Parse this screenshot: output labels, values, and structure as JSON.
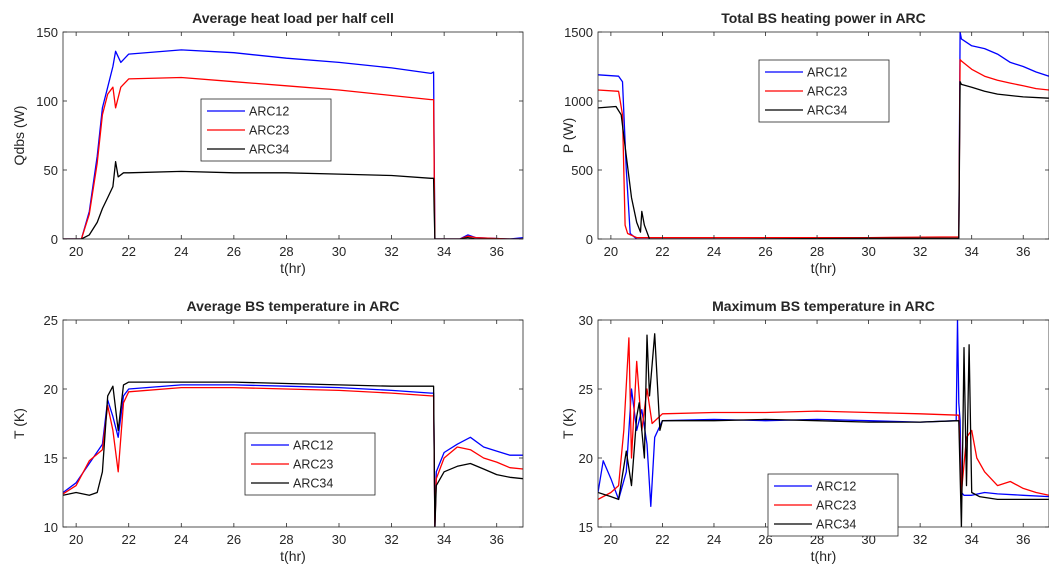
{
  "chart_data": [
    {
      "type": "line",
      "title": "Average heat load per half cell",
      "xlabel": "t(hr)",
      "ylabel": "Qdbs (W)",
      "xlim": [
        19.5,
        37
      ],
      "ylim": [
        0,
        150
      ],
      "xticks": [
        "20",
        "22",
        "24",
        "26",
        "28",
        "30",
        "32",
        "34",
        "36"
      ],
      "yticks": [
        "0",
        "50",
        "100",
        "150"
      ],
      "legend": "upper-left-inside",
      "series": [
        {
          "name": "ARC12",
          "color": "#0000ff",
          "x": [
            19.5,
            20.2,
            20.5,
            20.8,
            21.0,
            21.2,
            21.4,
            21.5,
            21.7,
            22.0,
            24.0,
            26.0,
            28.0,
            30.0,
            32.0,
            33.5,
            33.6,
            33.62,
            33.65,
            34.0,
            34.6,
            34.9,
            35.2,
            36.5,
            37.0
          ],
          "y": [
            0,
            0,
            20,
            60,
            95,
            110,
            125,
            136,
            128,
            134,
            137,
            135,
            131,
            128,
            124,
            120,
            121,
            60,
            0,
            0,
            0,
            3,
            1,
            0,
            1
          ]
        },
        {
          "name": "ARC23",
          "color": "#ff0000",
          "x": [
            19.5,
            20.2,
            20.5,
            20.8,
            21.0,
            21.2,
            21.4,
            21.5,
            21.7,
            22.0,
            24.0,
            26.0,
            28.0,
            30.0,
            32.0,
            33.5,
            33.6,
            33.62,
            33.65,
            34.0,
            34.6,
            34.9,
            35.2,
            36.5,
            37.0
          ],
          "y": [
            0,
            0,
            18,
            55,
            90,
            105,
            110,
            95,
            110,
            116,
            117,
            114,
            111,
            108,
            104,
            101,
            101,
            50,
            0,
            0,
            0,
            2,
            1,
            0,
            0
          ]
        },
        {
          "name": "ARC34",
          "color": "#000000",
          "x": [
            19.5,
            20.2,
            20.5,
            20.8,
            21.0,
            21.2,
            21.4,
            21.5,
            21.6,
            21.8,
            22.0,
            24.0,
            26.0,
            28.0,
            30.0,
            32.0,
            33.5,
            33.6,
            33.62,
            33.65,
            34.0,
            34.6,
            34.9,
            35.2,
            36.5,
            37.0
          ],
          "y": [
            0,
            0,
            3,
            12,
            22,
            30,
            38,
            56,
            45,
            48,
            48,
            49,
            48,
            48,
            47,
            46,
            44,
            44,
            20,
            0,
            0,
            0,
            1,
            0,
            0,
            0
          ]
        }
      ]
    },
    {
      "type": "line",
      "title": "Total BS heating power in ARC",
      "xlabel": "t(hr)",
      "ylabel": "P (W)",
      "xlim": [
        19.5,
        37
      ],
      "ylim": [
        0,
        1500
      ],
      "xticks": [
        "20",
        "22",
        "24",
        "26",
        "28",
        "30",
        "32",
        "34",
        "36"
      ],
      "yticks": [
        "0",
        "500",
        "1000",
        "1500"
      ],
      "legend": "top-center-inside",
      "series": [
        {
          "name": "ARC12",
          "color": "#0000ff",
          "x": [
            19.5,
            20.3,
            20.45,
            20.6,
            20.75,
            21.0,
            25.0,
            30.0,
            33.5,
            33.55,
            33.6,
            34.0,
            34.5,
            35.0,
            35.5,
            36.0,
            36.5,
            37.0
          ],
          "y": [
            1190,
            1180,
            1140,
            500,
            40,
            0,
            0,
            0,
            0,
            1500,
            1450,
            1400,
            1380,
            1340,
            1280,
            1250,
            1210,
            1180
          ]
        },
        {
          "name": "ARC23",
          "color": "#ff0000",
          "x": [
            19.5,
            20.3,
            20.45,
            20.55,
            20.65,
            21.0,
            25.0,
            30.0,
            33.5,
            33.55,
            33.6,
            34.0,
            34.5,
            35.0,
            35.5,
            36.0,
            36.5,
            37.0
          ],
          "y": [
            1080,
            1070,
            900,
            100,
            40,
            10,
            10,
            10,
            15,
            1300,
            1290,
            1230,
            1180,
            1150,
            1130,
            1110,
            1090,
            1080
          ]
        },
        {
          "name": "ARC34",
          "color": "#000000",
          "x": [
            19.5,
            20.2,
            20.4,
            20.6,
            20.8,
            21.0,
            21.15,
            21.2,
            21.3,
            21.5,
            25.0,
            30.0,
            33.5,
            33.55,
            33.6,
            34.0,
            34.5,
            35.0,
            36.0,
            37.0
          ],
          "y": [
            950,
            960,
            900,
            600,
            300,
            120,
            50,
            200,
            100,
            0,
            0,
            5,
            5,
            1140,
            1120,
            1100,
            1070,
            1050,
            1030,
            1020
          ]
        }
      ]
    },
    {
      "type": "line",
      "title": "Average BS temperature in ARC",
      "xlabel": "t(hr)",
      "ylabel": "T (K)",
      "xlim": [
        19.5,
        37
      ],
      "ylim": [
        10,
        25
      ],
      "xticks": [
        "20",
        "22",
        "24",
        "26",
        "28",
        "30",
        "32",
        "34",
        "36"
      ],
      "yticks": [
        "10",
        "15",
        "20",
        "25"
      ],
      "legend": "lower-center-inside",
      "series": [
        {
          "name": "ARC12",
          "color": "#0000ff",
          "x": [
            19.5,
            20.0,
            20.5,
            21.0,
            21.2,
            21.4,
            21.6,
            21.8,
            22.0,
            24.0,
            26.0,
            28.0,
            30.0,
            32.0,
            33.5,
            33.6,
            33.65,
            33.7,
            34.0,
            34.5,
            35.0,
            35.5,
            36.0,
            36.5,
            37.0
          ],
          "y": [
            12.5,
            13.2,
            14.6,
            16.0,
            19.2,
            18.0,
            16.5,
            19.5,
            20.0,
            20.3,
            20.3,
            20.2,
            20.1,
            19.9,
            19.7,
            19.7,
            10.0,
            14.0,
            15.4,
            16.0,
            16.5,
            15.8,
            15.5,
            15.2,
            15.2
          ]
        },
        {
          "name": "ARC23",
          "color": "#ff0000",
          "x": [
            19.5,
            20.0,
            20.5,
            21.0,
            21.2,
            21.4,
            21.6,
            21.8,
            22.0,
            24.0,
            26.0,
            28.0,
            30.0,
            32.0,
            33.5,
            33.6,
            33.65,
            33.7,
            34.0,
            34.5,
            35.0,
            35.5,
            36.0,
            36.5,
            37.0
          ],
          "y": [
            12.4,
            13.0,
            14.8,
            15.6,
            18.8,
            17.0,
            14.0,
            19.0,
            19.8,
            20.1,
            20.1,
            20.0,
            19.9,
            19.7,
            19.5,
            19.5,
            10.0,
            13.5,
            15.0,
            15.8,
            15.6,
            15.0,
            14.7,
            14.3,
            14.2
          ]
        },
        {
          "name": "ARC34",
          "color": "#000000",
          "x": [
            19.5,
            20.0,
            20.5,
            20.8,
            21.0,
            21.2,
            21.4,
            21.6,
            21.8,
            22.0,
            24.0,
            26.0,
            28.0,
            30.0,
            32.0,
            33.5,
            33.6,
            33.65,
            33.7,
            34.0,
            34.5,
            35.0,
            35.5,
            36.0,
            36.5,
            37.0
          ],
          "y": [
            12.3,
            12.5,
            12.3,
            12.5,
            14.0,
            19.5,
            20.2,
            17.0,
            20.3,
            20.5,
            20.5,
            20.5,
            20.4,
            20.3,
            20.2,
            20.2,
            20.2,
            10.0,
            13.0,
            14.0,
            14.4,
            14.6,
            14.2,
            13.8,
            13.6,
            13.5
          ]
        }
      ]
    },
    {
      "type": "line",
      "title": "Maximum BS temperature in ARC",
      "xlabel": "t(hr)",
      "ylabel": "T (K)",
      "xlim": [
        19.5,
        37
      ],
      "ylim": [
        15,
        30
      ],
      "xticks": [
        "20",
        "22",
        "24",
        "26",
        "28",
        "30",
        "32",
        "34",
        "36"
      ],
      "yticks": [
        "15",
        "20",
        "25",
        "30"
      ],
      "legend": "lower-center-inside",
      "series": [
        {
          "name": "ARC12",
          "color": "#0000ff",
          "x": [
            19.5,
            19.7,
            20.0,
            20.3,
            20.6,
            20.8,
            21.0,
            21.2,
            21.4,
            21.55,
            21.7,
            22.0,
            24.0,
            26.0,
            28.0,
            30.0,
            32.0,
            33.4,
            33.45,
            33.5,
            33.55,
            33.6,
            33.7,
            34.0,
            34.5,
            35.0,
            36.0,
            37.0
          ],
          "y": [
            17.5,
            19.8,
            18.5,
            17.0,
            19.0,
            25.0,
            22.0,
            23.5,
            21.0,
            16.5,
            21.5,
            22.7,
            22.8,
            22.7,
            22.8,
            22.7,
            22.6,
            22.7,
            30.0,
            24.0,
            22.7,
            17.5,
            17.3,
            17.3,
            17.5,
            17.4,
            17.3,
            17.2
          ]
        },
        {
          "name": "ARC23",
          "color": "#ff0000",
          "x": [
            19.5,
            20.0,
            20.3,
            20.5,
            20.7,
            20.8,
            21.0,
            21.2,
            21.4,
            21.6,
            22.0,
            24.0,
            26.0,
            28.0,
            30.0,
            32.0,
            33.5,
            33.6,
            33.8,
            34.0,
            34.2,
            34.5,
            35.0,
            35.5,
            36.0,
            36.5,
            37.0
          ],
          "y": [
            17.0,
            17.5,
            18.0,
            22.0,
            28.7,
            20.0,
            27.0,
            22.0,
            25.0,
            22.5,
            23.2,
            23.3,
            23.3,
            23.4,
            23.3,
            23.2,
            23.1,
            17.5,
            21.5,
            22.0,
            20.0,
            19.0,
            18.0,
            18.3,
            17.8,
            17.5,
            17.3
          ]
        },
        {
          "name": "ARC34",
          "color": "#000000",
          "x": [
            19.5,
            20.0,
            20.3,
            20.6,
            20.8,
            21.0,
            21.1,
            21.3,
            21.4,
            21.5,
            21.7,
            21.9,
            22.0,
            24.0,
            26.0,
            28.0,
            30.0,
            32.0,
            33.5,
            33.6,
            33.65,
            33.7,
            33.8,
            33.9,
            34.0,
            34.3,
            35.0,
            36.0,
            37.0
          ],
          "y": [
            17.5,
            17.2,
            17.0,
            20.5,
            18.0,
            23.0,
            24.0,
            20.0,
            28.9,
            24.5,
            29.0,
            22.0,
            22.7,
            22.7,
            22.8,
            22.7,
            22.6,
            22.6,
            22.7,
            15.0,
            21.0,
            28.0,
            18.0,
            28.2,
            17.5,
            17.2,
            17.0,
            17.0,
            17.0
          ]
        }
      ]
    }
  ]
}
